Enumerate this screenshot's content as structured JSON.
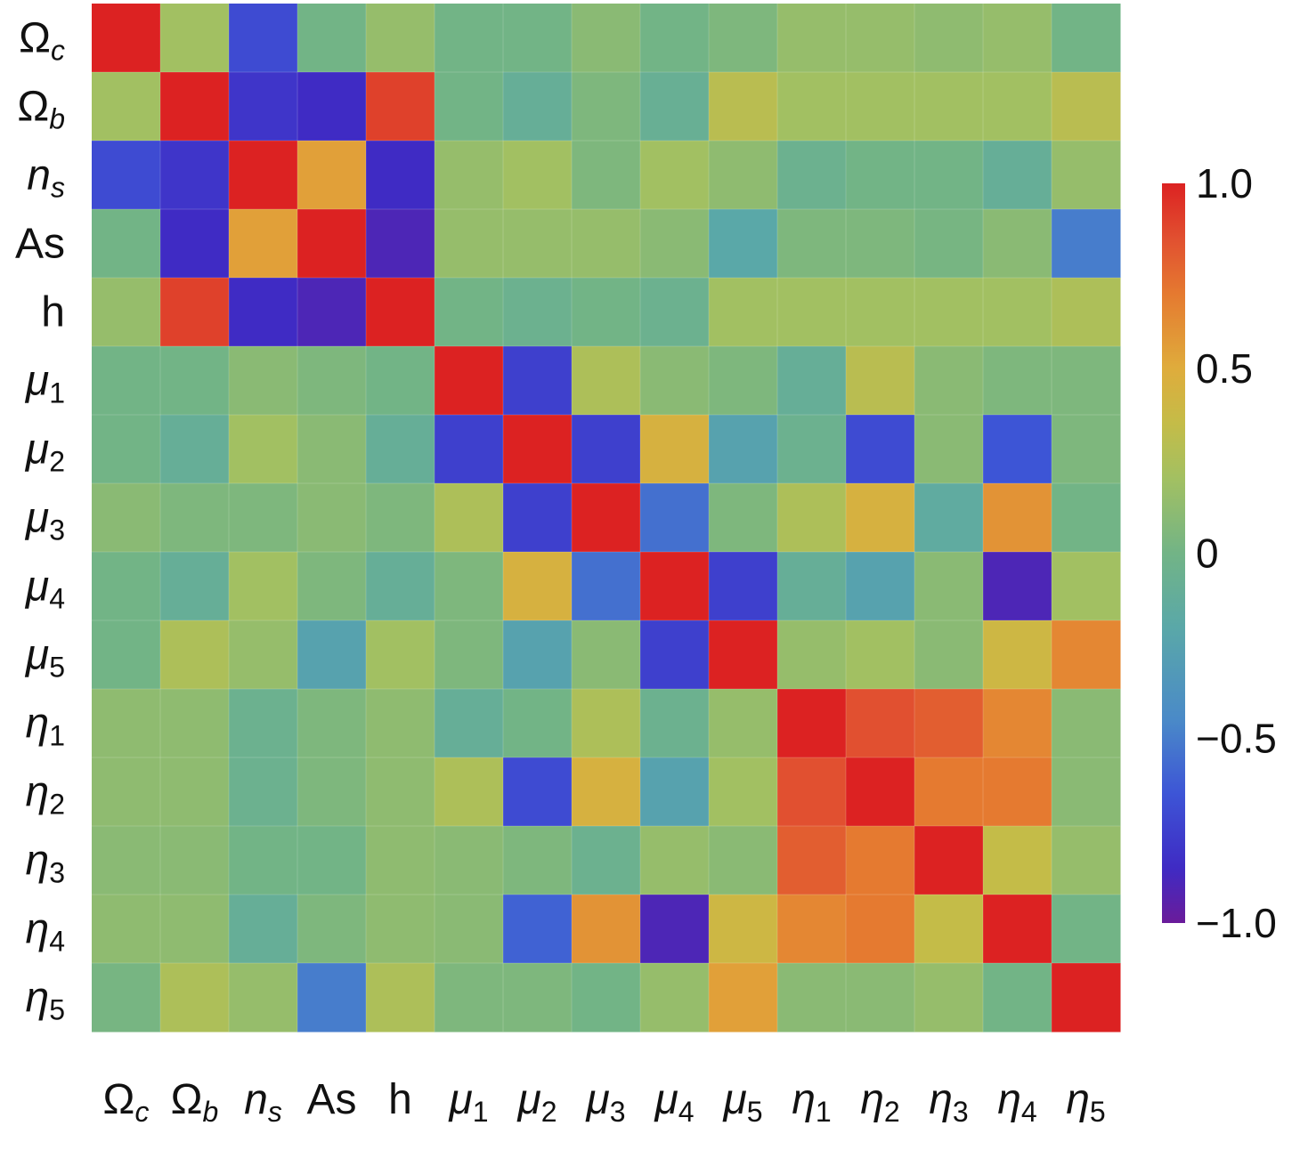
{
  "chart_data": {
    "type": "heatmap",
    "title": "",
    "labels": [
      {
        "id": "Omega_c",
        "base": "Ω",
        "sub": "c",
        "italic": false,
        "subItalic": true
      },
      {
        "id": "Omega_b",
        "base": "Ω",
        "sub": "b",
        "italic": false,
        "subItalic": true
      },
      {
        "id": "n_s",
        "base": "n",
        "sub": "s",
        "italic": true,
        "subItalic": true
      },
      {
        "id": "As",
        "base": "As",
        "sub": "",
        "italic": false,
        "subItalic": false
      },
      {
        "id": "h",
        "base": "h",
        "sub": "",
        "italic": false,
        "subItalic": false
      },
      {
        "id": "mu_1",
        "base": "μ",
        "sub": "1",
        "italic": true,
        "subItalic": false
      },
      {
        "id": "mu_2",
        "base": "μ",
        "sub": "2",
        "italic": true,
        "subItalic": false
      },
      {
        "id": "mu_3",
        "base": "μ",
        "sub": "3",
        "italic": true,
        "subItalic": false
      },
      {
        "id": "mu_4",
        "base": "μ",
        "sub": "4",
        "italic": true,
        "subItalic": false
      },
      {
        "id": "mu_5",
        "base": "μ",
        "sub": "5",
        "italic": true,
        "subItalic": false
      },
      {
        "id": "eta_1",
        "base": "η",
        "sub": "1",
        "italic": true,
        "subItalic": false
      },
      {
        "id": "eta_2",
        "base": "η",
        "sub": "2",
        "italic": true,
        "subItalic": false
      },
      {
        "id": "eta_3",
        "base": "η",
        "sub": "3",
        "italic": true,
        "subItalic": false
      },
      {
        "id": "eta_4",
        "base": "η",
        "sub": "4",
        "italic": true,
        "subItalic": false
      },
      {
        "id": "eta_5",
        "base": "η",
        "sub": "5",
        "italic": true,
        "subItalic": false
      }
    ],
    "matrix": [
      [
        1.0,
        0.2,
        -0.7,
        0.0,
        0.15,
        0.0,
        0.0,
        0.1,
        0.0,
        0.05,
        0.15,
        0.15,
        0.12,
        0.15,
        0.0
      ],
      [
        0.2,
        1.0,
        -0.8,
        -0.85,
        0.9,
        0.0,
        -0.1,
        0.05,
        -0.08,
        0.3,
        0.2,
        0.2,
        0.2,
        0.2,
        0.3
      ],
      [
        -0.7,
        -0.8,
        1.0,
        0.55,
        -0.85,
        0.15,
        0.2,
        0.05,
        0.2,
        0.12,
        -0.05,
        0.0,
        0.0,
        -0.1,
        0.15
      ],
      [
        0.0,
        -0.85,
        0.55,
        1.0,
        -0.9,
        0.15,
        0.15,
        0.15,
        0.1,
        -0.2,
        0.05,
        0.05,
        0.02,
        0.1,
        -0.5
      ],
      [
        0.15,
        0.9,
        -0.85,
        -0.9,
        1.0,
        0.0,
        -0.05,
        0.0,
        -0.05,
        0.2,
        0.2,
        0.2,
        0.2,
        0.2,
        0.25
      ],
      [
        0.0,
        0.0,
        0.1,
        0.05,
        0.0,
        1.0,
        -0.75,
        0.25,
        0.1,
        0.05,
        -0.1,
        0.3,
        0.1,
        0.05,
        0.05
      ],
      [
        0.0,
        -0.1,
        0.2,
        0.1,
        -0.1,
        -0.75,
        1.0,
        -0.75,
        0.45,
        -0.25,
        -0.05,
        -0.7,
        0.1,
        -0.65,
        0.05
      ],
      [
        0.1,
        0.05,
        0.05,
        0.1,
        0.05,
        0.25,
        -0.75,
        1.0,
        -0.55,
        0.05,
        0.25,
        0.45,
        -0.15,
        0.6,
        0.0
      ],
      [
        0.0,
        -0.1,
        0.2,
        0.05,
        -0.1,
        0.05,
        0.45,
        -0.55,
        1.0,
        -0.75,
        -0.1,
        -0.25,
        0.1,
        -0.9,
        0.2
      ],
      [
        0.0,
        0.25,
        0.15,
        -0.25,
        0.2,
        0.05,
        -0.25,
        0.1,
        -0.75,
        1.0,
        0.15,
        0.2,
        0.1,
        0.4,
        0.65
      ],
      [
        0.12,
        0.12,
        -0.05,
        0.05,
        0.12,
        -0.1,
        0.0,
        0.25,
        -0.05,
        0.15,
        1.0,
        0.85,
        0.8,
        0.65,
        0.1
      ],
      [
        0.12,
        0.12,
        -0.05,
        0.05,
        0.12,
        0.25,
        -0.7,
        0.45,
        -0.25,
        0.2,
        0.85,
        1.0,
        0.7,
        0.7,
        0.1
      ],
      [
        0.1,
        0.1,
        0.0,
        0.0,
        0.12,
        0.1,
        0.05,
        -0.05,
        0.15,
        0.1,
        0.8,
        0.7,
        1.0,
        0.35,
        0.15
      ],
      [
        0.12,
        0.12,
        -0.1,
        0.05,
        0.12,
        0.1,
        -0.6,
        0.6,
        -0.9,
        0.4,
        0.65,
        0.7,
        0.35,
        1.0,
        0.0
      ],
      [
        0.02,
        0.25,
        0.15,
        -0.5,
        0.25,
        0.05,
        0.05,
        0.0,
        0.15,
        0.55,
        0.1,
        0.1,
        0.15,
        0.0,
        1.0
      ]
    ],
    "colorbar": {
      "min": -1.0,
      "max": 1.0,
      "ticks": [
        {
          "value": 1.0,
          "label": "1.0"
        },
        {
          "value": 0.5,
          "label": "0.5"
        },
        {
          "value": 0.0,
          "label": "0"
        },
        {
          "value": -0.5,
          "label": "−0.5"
        },
        {
          "value": -1.0,
          "label": "−1.0"
        }
      ],
      "colormap": [
        {
          "value": -1.0,
          "color": "#6a1b9a"
        },
        {
          "value": -0.85,
          "color": "#3f2bc4"
        },
        {
          "value": -0.65,
          "color": "#3d55d6"
        },
        {
          "value": -0.45,
          "color": "#4a8ac8"
        },
        {
          "value": -0.2,
          "color": "#5aa8a8"
        },
        {
          "value": 0.0,
          "color": "#72b486"
        },
        {
          "value": 0.2,
          "color": "#a2c062"
        },
        {
          "value": 0.35,
          "color": "#c4bc48"
        },
        {
          "value": 0.5,
          "color": "#dfac3c"
        },
        {
          "value": 0.7,
          "color": "#e57a30"
        },
        {
          "value": 0.85,
          "color": "#e15030"
        },
        {
          "value": 1.0,
          "color": "#dc2222"
        }
      ]
    },
    "legend_placement": "right"
  }
}
